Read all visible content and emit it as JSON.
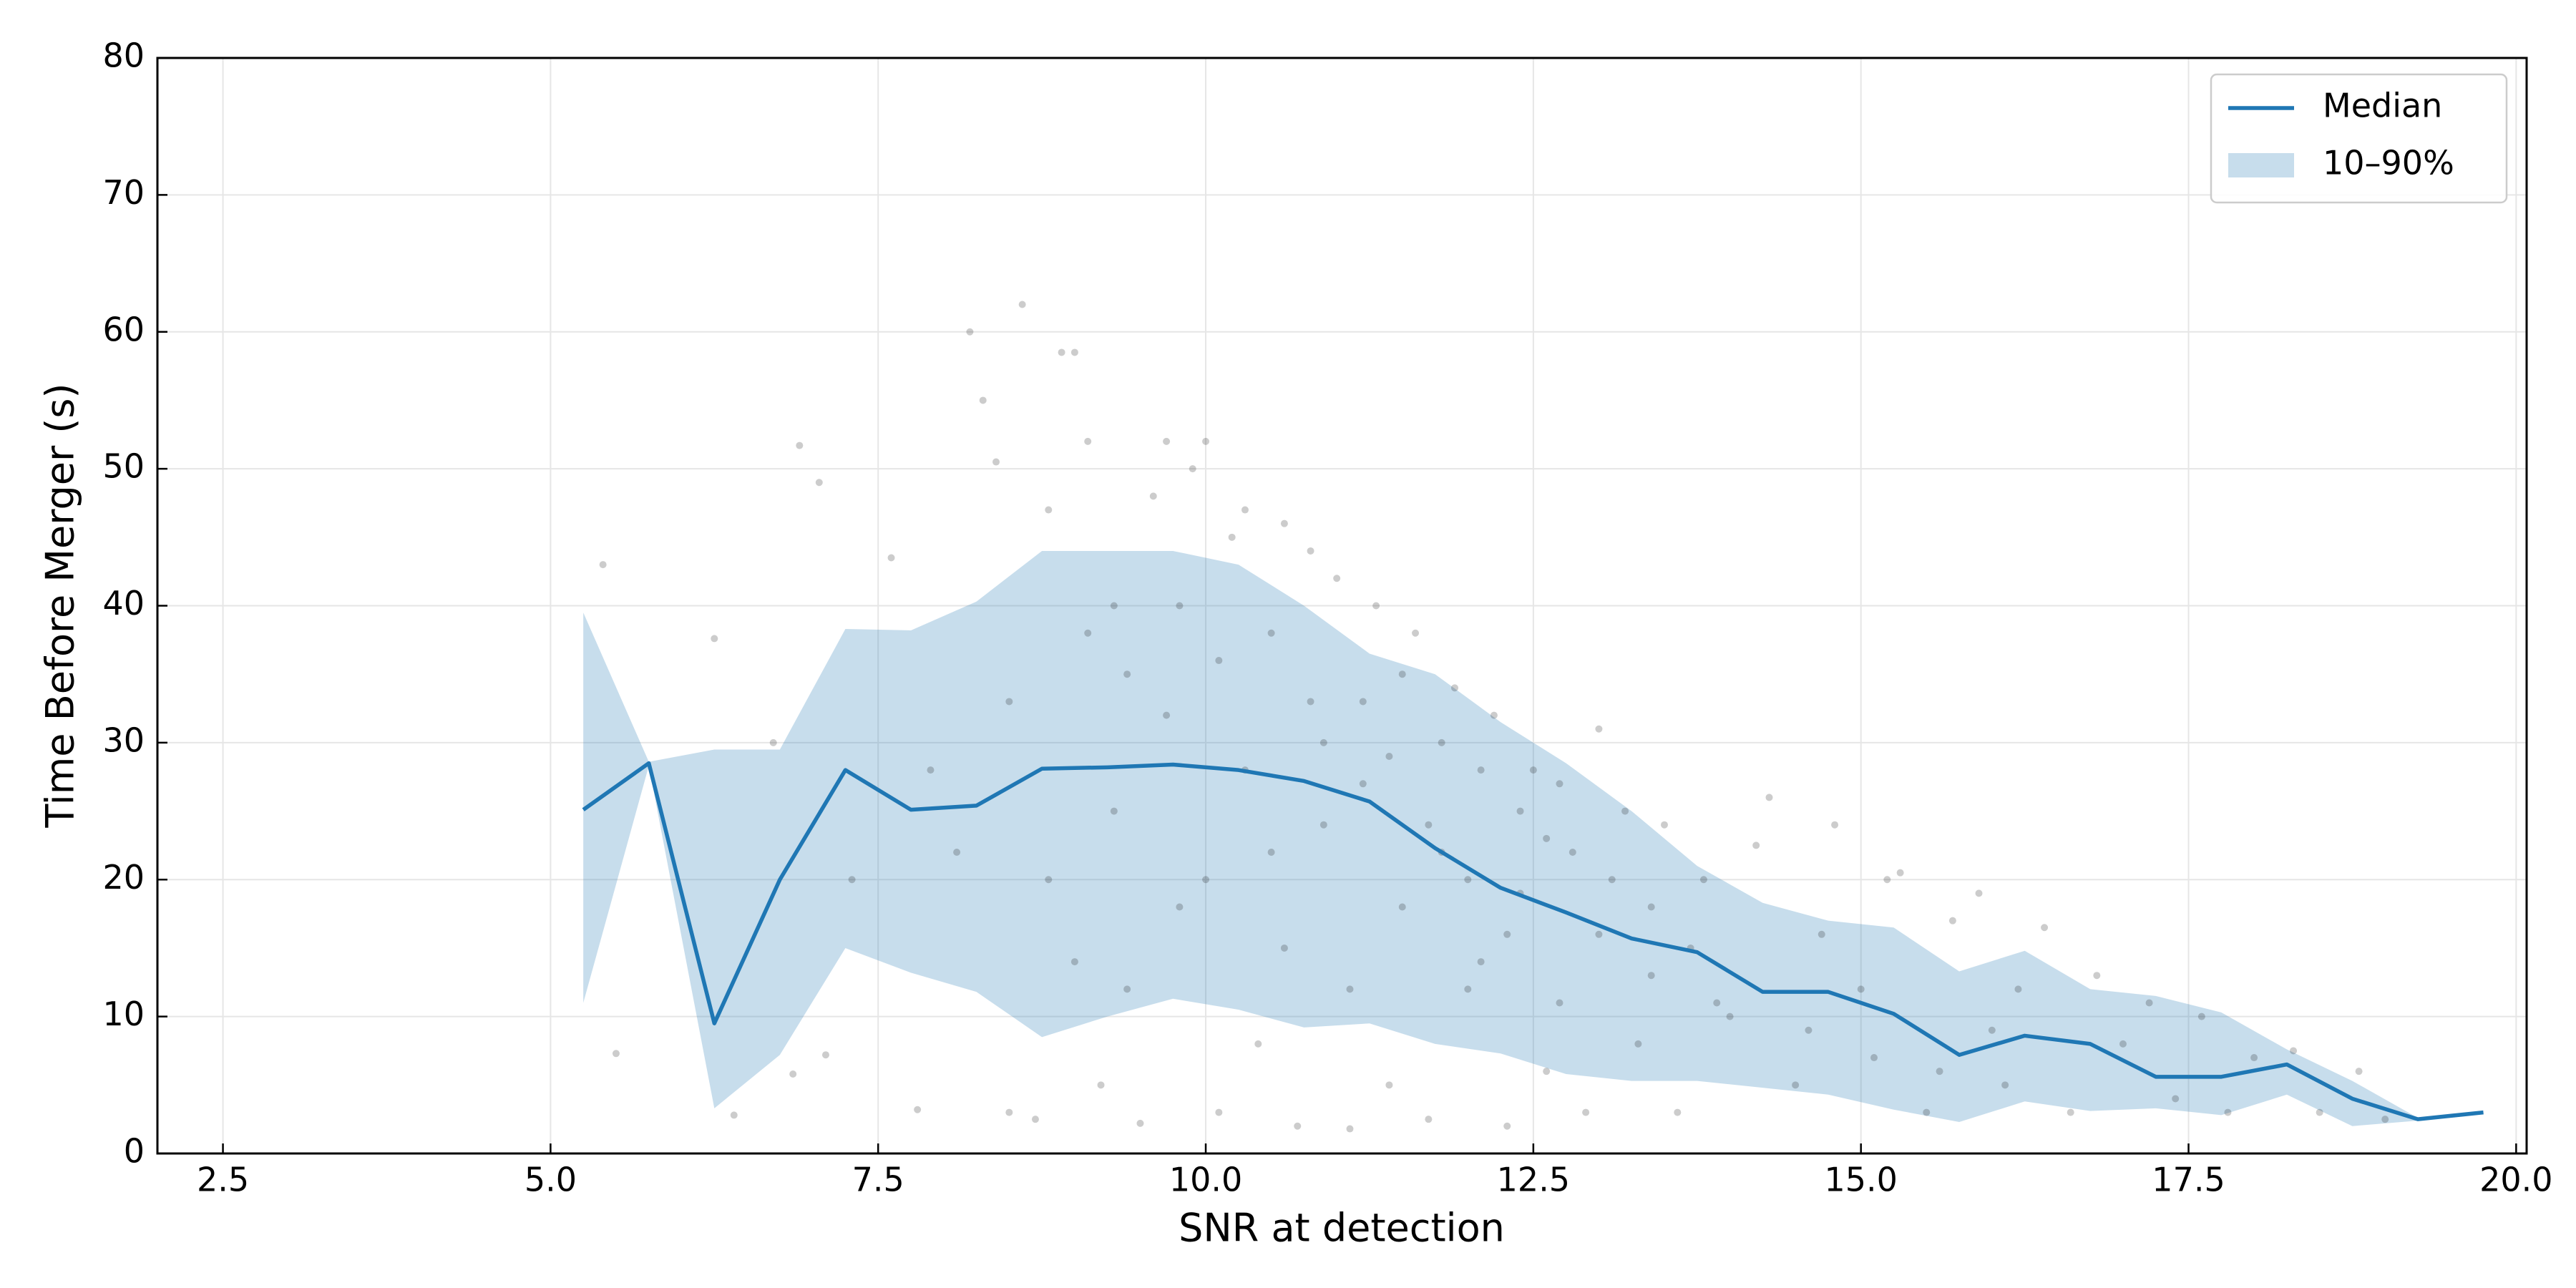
{
  "chart_data": {
    "type": "line",
    "xlabel": "SNR at detection",
    "ylabel": "Time Before Merger (s)",
    "x": [
      5.25,
      5.75,
      6.25,
      6.75,
      7.25,
      7.75,
      8.25,
      8.75,
      9.25,
      9.75,
      10.25,
      10.75,
      11.25,
      11.75,
      12.25,
      12.75,
      13.25,
      13.75,
      14.25,
      14.75,
      15.25,
      15.75,
      16.25,
      16.75,
      17.25,
      17.75,
      18.25,
      18.75,
      19.25,
      19.75
    ],
    "series": [
      {
        "name": "Median",
        "color": "#1f77b4",
        "values": [
          25.1,
          28.5,
          9.5,
          20,
          28,
          25.1,
          25.4,
          28.1,
          28.2,
          28.4,
          28,
          27.2,
          25.7,
          22.3,
          19.4,
          17.6,
          15.7,
          14.7,
          11.8,
          11.8,
          10.2,
          7.2,
          8.6,
          8.0,
          5.6,
          5.6,
          6.5,
          4.0,
          2.5,
          3.0
        ]
      }
    ],
    "band": {
      "name": "10–90%",
      "color": "#1f77b4",
      "lower": [
        11,
        28.3,
        3.3,
        7.2,
        15,
        13.2,
        11.8,
        8.5,
        10,
        11.3,
        10.5,
        9.2,
        9.5,
        8,
        7.3,
        5.8,
        5.3,
        5.3,
        4.8,
        4.3,
        3.2,
        2.3,
        3.8,
        3.1,
        3.3,
        2.8,
        4.3,
        2,
        2.4,
        null
      ],
      "upper": [
        39.5,
        28.6,
        29.5,
        29.5,
        38.3,
        38.2,
        40.3,
        44,
        44,
        44,
        43,
        40,
        36.5,
        35,
        31.5,
        28.5,
        25,
        21,
        18.3,
        17,
        16.5,
        13.3,
        14.8,
        12,
        11.5,
        10.3,
        7.6,
        5.3,
        2.6,
        null
      ]
    },
    "scatter": {
      "color": "#000000",
      "x": [
        5.4,
        5.5,
        6.25,
        6.4,
        6.7,
        6.9,
        7.05,
        7.1,
        6.85,
        7.3,
        7.6,
        7.8,
        7.9,
        8.1,
        8.2,
        8.3,
        8.4,
        8.5,
        8.6,
        8.7,
        8.8,
        8.9,
        9.0,
        9.1,
        9.2,
        9.3,
        9.4,
        9.5,
        9.6,
        9.7,
        9.8,
        9.9,
        10.0,
        10.1,
        10.2,
        10.3,
        10.4,
        10.5,
        10.6,
        10.7,
        10.8,
        10.9,
        11.0,
        11.1,
        11.2,
        11.3,
        11.4,
        11.5,
        11.6,
        11.7,
        11.8,
        11.9,
        12.0,
        12.1,
        12.2,
        12.3,
        12.4,
        12.5,
        12.6,
        12.7,
        12.8,
        12.9,
        13.0,
        13.1,
        13.2,
        13.3,
        13.4,
        13.5,
        13.6,
        13.7,
        13.8,
        14.0,
        14.2,
        14.3,
        14.5,
        14.7,
        14.8,
        15.0,
        15.2,
        15.3,
        15.5,
        15.7,
        15.9,
        16.0,
        16.2,
        16.4,
        16.6,
        16.8,
        17.0,
        17.2,
        17.4,
        17.6,
        17.8,
        18.0,
        18.3,
        18.5,
        18.8,
        19.0,
        9.0,
        9.3,
        9.7,
        10.0,
        10.3,
        10.6,
        10.9,
        11.2,
        11.5,
        11.8,
        12.1,
        12.4,
        12.7,
        13.0,
        8.5,
        8.8,
        9.1,
        9.4,
        9.8,
        10.1,
        10.5,
        10.8,
        11.1,
        11.4,
        11.7,
        12.0,
        12.3,
        12.6,
        13.4,
        13.9,
        14.6,
        15.1,
        15.6,
        16.1
      ],
      "y": [
        43,
        7.3,
        37.6,
        2.8,
        30,
        51.7,
        49,
        7.2,
        5.8,
        20,
        43.5,
        3.2,
        28,
        22,
        60,
        55,
        50.5,
        3,
        62,
        2.5,
        47,
        58.5,
        58.5,
        52,
        5,
        40,
        35,
        2.2,
        48,
        52,
        18,
        50,
        52,
        3,
        45,
        47,
        8,
        38,
        46,
        2,
        44,
        30,
        42,
        1.8,
        33,
        40,
        5,
        35,
        38,
        2.5,
        30,
        34,
        12,
        28,
        32,
        2,
        25,
        28,
        6,
        27,
        22,
        3,
        31,
        20,
        25,
        8,
        18,
        24,
        3,
        15,
        20,
        10,
        22.5,
        26,
        5,
        16,
        24,
        12,
        20,
        20.5,
        3,
        17,
        19,
        9,
        12,
        16.5,
        3,
        13,
        8,
        11,
        4,
        10,
        3,
        7,
        7.5,
        3,
        6,
        2.5,
        14,
        25,
        32,
        20,
        28,
        15,
        24,
        27,
        18,
        22,
        14,
        19,
        11,
        16,
        33,
        20,
        38,
        12,
        40,
        36,
        22,
        33,
        12,
        29,
        24,
        20,
        16,
        23,
        13,
        11,
        9,
        7,
        6,
        5
      ]
    },
    "xlim": [
      2.0,
      20.08
    ],
    "ylim": [
      0,
      80
    ],
    "xticks": [
      2.5,
      {
        "value": 5,
        "label": "5.0"
      },
      7.5,
      {
        "value": 10,
        "label": "10.0"
      },
      12.5,
      {
        "value": 15,
        "label": "15.0"
      },
      17.5,
      {
        "value": 20,
        "label": "20.0"
      }
    ],
    "yticks": [
      0,
      10,
      20,
      30,
      40,
      50,
      60,
      70,
      80
    ],
    "grid": true,
    "legend": "upper right"
  }
}
